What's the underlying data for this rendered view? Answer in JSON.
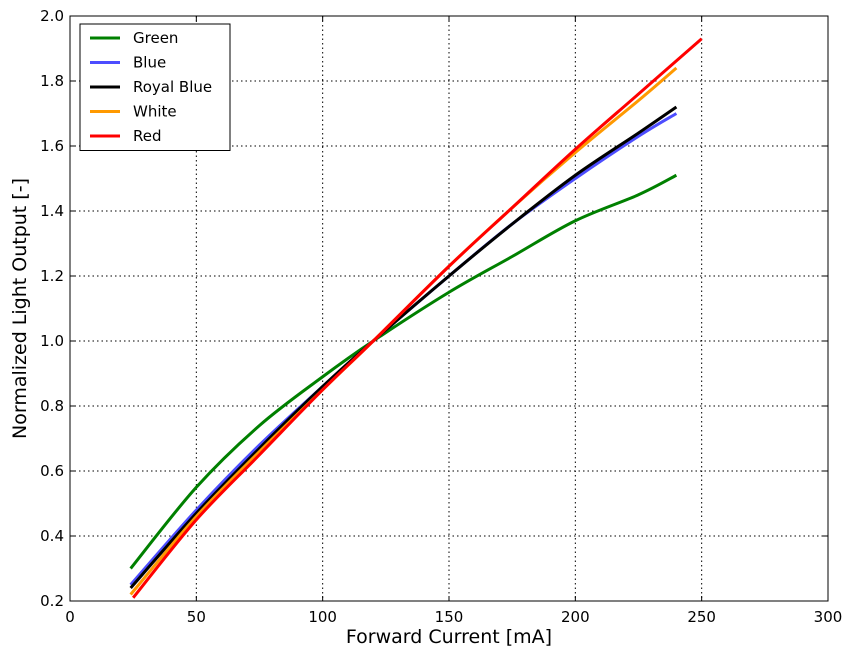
{
  "chart_data": {
    "type": "line",
    "xlabel": "Forward Current [mA]",
    "ylabel": "Normalized Light Output [-]",
    "xlim": [
      0,
      300
    ],
    "ylim": [
      0.2,
      2.0
    ],
    "xticks": [
      0,
      50,
      100,
      150,
      200,
      250,
      300
    ],
    "yticks": [
      0.2,
      0.4,
      0.6,
      0.8,
      1.0,
      1.2,
      1.4,
      1.6,
      1.8,
      2.0
    ],
    "xtick_labels": [
      "0",
      "50",
      "100",
      "150",
      "200",
      "250",
      "300"
    ],
    "ytick_labels": [
      "0.2",
      "0.4",
      "0.6",
      "0.8",
      "1.0",
      "1.2",
      "1.4",
      "1.6",
      "1.8",
      "2.0"
    ],
    "grid": true,
    "legend_position": "top-left",
    "series": [
      {
        "name": "Green",
        "color": "#008000",
        "x": [
          24,
          50,
          75,
          100,
          120,
          150,
          175,
          200,
          225,
          240
        ],
        "y": [
          0.3,
          0.55,
          0.74,
          0.89,
          1.0,
          1.15,
          1.26,
          1.37,
          1.45,
          1.51
        ]
      },
      {
        "name": "Blue",
        "color": "#4d4dff",
        "x": [
          24,
          50,
          75,
          100,
          120,
          150,
          175,
          200,
          225,
          240
        ],
        "y": [
          0.25,
          0.48,
          0.68,
          0.86,
          1.0,
          1.2,
          1.36,
          1.5,
          1.63,
          1.7
        ]
      },
      {
        "name": "Royal Blue",
        "color": "#000000",
        "x": [
          24,
          50,
          75,
          100,
          120,
          150,
          175,
          200,
          225,
          240
        ],
        "y": [
          0.24,
          0.47,
          0.67,
          0.86,
          1.0,
          1.2,
          1.36,
          1.51,
          1.64,
          1.72
        ]
      },
      {
        "name": "White",
        "color": "#ff9900",
        "x": [
          24,
          50,
          75,
          100,
          120,
          150,
          175,
          200,
          225,
          240
        ],
        "y": [
          0.22,
          0.46,
          0.66,
          0.85,
          1.0,
          1.23,
          1.41,
          1.58,
          1.74,
          1.84
        ]
      },
      {
        "name": "Red",
        "color": "#ff0000",
        "x": [
          25,
          50,
          75,
          100,
          120,
          150,
          175,
          200,
          225,
          250
        ],
        "y": [
          0.21,
          0.45,
          0.65,
          0.85,
          1.0,
          1.23,
          1.41,
          1.59,
          1.76,
          1.93
        ]
      }
    ]
  }
}
